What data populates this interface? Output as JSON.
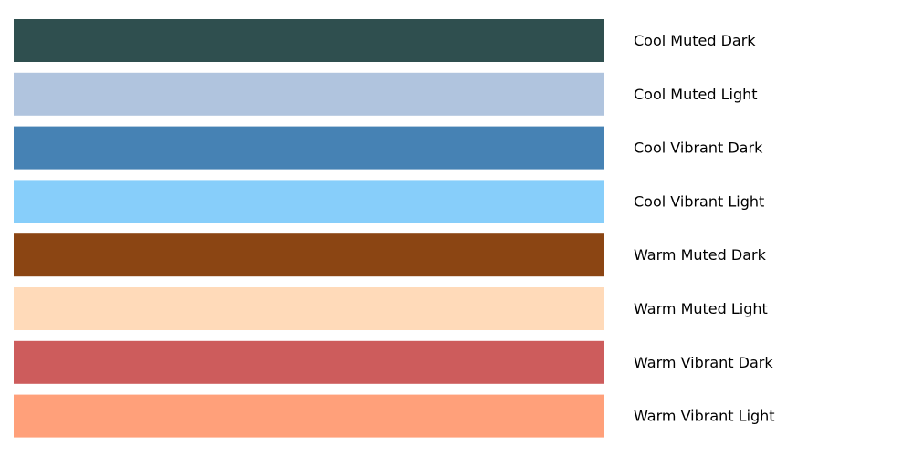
{
  "chart_data": {
    "type": "bar",
    "orientation": "horizontal",
    "title": "",
    "xlabel": "",
    "ylabel": "",
    "grid": false,
    "axes_visible": false,
    "categories": [
      "Cool Muted Dark",
      "Cool Muted Light",
      "Cool Vibrant Dark",
      "Cool Vibrant Light",
      "Warm Muted Dark",
      "Warm Muted Light",
      "Warm Vibrant Dark",
      "Warm Vibrant Light"
    ],
    "values": [
      1,
      1,
      1,
      1,
      1,
      1,
      1,
      1
    ],
    "colors": [
      "#2F4F4F",
      "#B0C4DE",
      "#4682B4",
      "#87CEFA",
      "#8B4513",
      "#FFDAB9",
      "#CD5C5C",
      "#FFA07A"
    ]
  }
}
